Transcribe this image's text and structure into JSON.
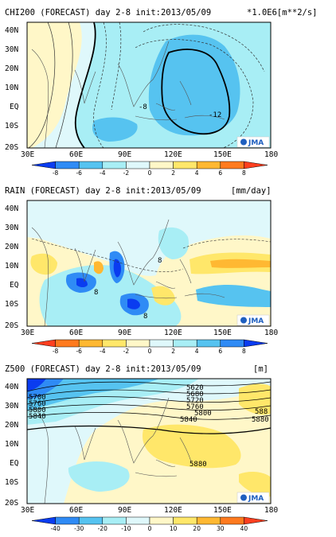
{
  "panels": [
    {
      "title": "CHI200 (FORECAST) day 2-8 init:2013/05/09",
      "units": "*1.0E6[m**2/s]",
      "y_ticks": [
        "40N",
        "30N",
        "20N",
        "10N",
        "EQ",
        "10S",
        "20S"
      ],
      "x_ticks": [
        "30E",
        "60E",
        "90E",
        "120E",
        "150E",
        "180"
      ],
      "colorbar_ticks": [
        "-8",
        "-6",
        "-4",
        "-2",
        "0",
        "2",
        "4",
        "6",
        "8"
      ],
      "colorbar_colors": [
        "#0a3cf0",
        "#2f8bf5",
        "#56c3f0",
        "#a8eef5",
        "#dff8fb",
        "#fff7c8",
        "#ffe76a",
        "#ffb832",
        "#ff7a1e",
        "#ff3f1f"
      ],
      "contour_labels": [
        "-8",
        "-12"
      ],
      "logo": "JMA",
      "chart_data": {
        "type": "heatmap",
        "title": "CHI200 (FORECAST) day 2-8 init:2013/05/09",
        "units": "*1.0E6[m**2/s]",
        "x_range": [
          30,
          180
        ],
        "y_range": [
          -20,
          45
        ],
        "x_ticks": [
          "30E",
          "60E",
          "90E",
          "120E",
          "150E",
          "180"
        ],
        "y_ticks": [
          "40N",
          "30N",
          "20N",
          "10N",
          "EQ",
          "10S",
          "20S"
        ],
        "colorbar_levels": [
          -8,
          -6,
          -4,
          -2,
          0,
          2,
          4,
          6,
          8
        ],
        "contour_labels": [
          -8,
          -12
        ]
      }
    },
    {
      "title": "RAIN (FORECAST) day 2-8 init:2013/05/09",
      "units": "[mm/day]",
      "y_ticks": [
        "40N",
        "30N",
        "20N",
        "10N",
        "EQ",
        "10S",
        "20S"
      ],
      "x_ticks": [
        "30E",
        "60E",
        "90E",
        "120E",
        "150E",
        "180"
      ],
      "colorbar_ticks": [
        "-8",
        "-6",
        "-4",
        "-2",
        "0",
        "2",
        "4",
        "6",
        "8"
      ],
      "colorbar_colors": [
        "#ff3f1f",
        "#ff7a1e",
        "#ffb832",
        "#ffe76a",
        "#fff7c8",
        "#dff8fb",
        "#a8eef5",
        "#56c3f0",
        "#2f8bf5",
        "#0a3cf0"
      ],
      "contour_labels": [
        "8",
        "8",
        "8"
      ],
      "logo": "JMA",
      "chart_data": {
        "type": "heatmap",
        "title": "RAIN (FORECAST) day 2-8 init:2013/05/09",
        "units": "[mm/day]",
        "x_range": [
          30,
          180
        ],
        "y_range": [
          -20,
          45
        ],
        "x_ticks": [
          "30E",
          "60E",
          "90E",
          "120E",
          "150E",
          "180"
        ],
        "y_ticks": [
          "40N",
          "30N",
          "20N",
          "10N",
          "EQ",
          "10S",
          "20S"
        ],
        "colorbar_levels": [
          -8,
          -6,
          -4,
          -2,
          0,
          2,
          4,
          6,
          8
        ]
      }
    },
    {
      "title": "Z500 (FORECAST) day 2-8 init:2013/05/09",
      "units": "[m]",
      "y_ticks": [
        "40N",
        "30N",
        "20N",
        "10N",
        "EQ",
        "10S",
        "20S"
      ],
      "x_ticks": [
        "30E",
        "60E",
        "90E",
        "120E",
        "150E",
        "180"
      ],
      "colorbar_ticks": [
        "-40",
        "-30",
        "-20",
        "-10",
        "0",
        "10",
        "20",
        "30",
        "40"
      ],
      "colorbar_colors": [
        "#0a3cf0",
        "#2f8bf5",
        "#56c3f0",
        "#a8eef5",
        "#dff8fb",
        "#fff7c8",
        "#ffe76a",
        "#ffb832",
        "#ff7a1e",
        "#ff3f1f"
      ],
      "contour_labels": [
        "5700",
        "5760",
        "5800",
        "5840",
        "5880",
        "5620",
        "5680",
        "5720",
        "5760",
        "5800",
        "5840",
        "5880",
        "588"
      ],
      "logo": "JMA",
      "chart_data": {
        "type": "heatmap",
        "title": "Z500 (FORECAST) day 2-8 init:2013/05/09",
        "units": "[m]",
        "x_range": [
          30,
          180
        ],
        "y_range": [
          -20,
          45
        ],
        "x_ticks": [
          "30E",
          "60E",
          "90E",
          "120E",
          "150E",
          "180"
        ],
        "y_ticks": [
          "40N",
          "30N",
          "20N",
          "10N",
          "EQ",
          "10S",
          "20S"
        ],
        "colorbar_levels": [
          -40,
          -30,
          -20,
          -10,
          0,
          10,
          20,
          30,
          40
        ],
        "contour_labels": [
          5620,
          5680,
          5700,
          5720,
          5760,
          5800,
          5840,
          5880
        ]
      }
    }
  ]
}
